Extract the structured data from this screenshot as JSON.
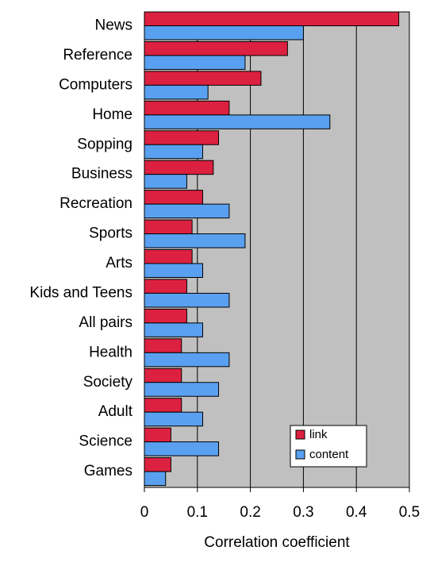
{
  "chart_data": {
    "type": "bar",
    "orientation": "horizontal",
    "categories": [
      "News",
      "Reference",
      "Computers",
      "Home",
      "Sopping",
      "Business",
      "Recreation",
      "Sports",
      "Arts",
      "Kids and Teens",
      "All pairs",
      "Health",
      "Society",
      "Adult",
      "Science",
      "Games"
    ],
    "series": [
      {
        "name": "link",
        "color": "#dc2140",
        "values": [
          0.48,
          0.27,
          0.22,
          0.16,
          0.14,
          0.13,
          0.11,
          0.09,
          0.09,
          0.08,
          0.08,
          0.07,
          0.07,
          0.07,
          0.05,
          0.05
        ]
      },
      {
        "name": "content",
        "color": "#5aa0f0",
        "values": [
          0.3,
          0.19,
          0.12,
          0.35,
          0.11,
          0.08,
          0.16,
          0.19,
          0.11,
          0.16,
          0.11,
          0.16,
          0.14,
          0.11,
          0.14,
          0.04
        ]
      }
    ],
    "xlabel": "Correlation coefficient",
    "ylabel": "",
    "xlim": [
      0,
      0.5
    ],
    "xticks": [
      0,
      0.1,
      0.2,
      0.3,
      0.4,
      0.5
    ],
    "xtick_labels": [
      "0",
      "0.1",
      "0.2",
      "0.3",
      "0.4",
      "0.5"
    ],
    "grid": true,
    "legend_position": "bottom-right",
    "plot_background": "#c0c0c0"
  }
}
